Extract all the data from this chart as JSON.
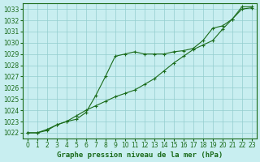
{
  "title": "Graphe pression niveau de la mer (hPa)",
  "background_color": "#c8eef0",
  "grid_color": "#93cece",
  "line_color": "#1a6b1a",
  "marker_color": "#1a6b1a",
  "xlim": [
    -0.5,
    23.5
  ],
  "ylim": [
    1021.5,
    1033.5
  ],
  "xticks": [
    0,
    1,
    2,
    3,
    4,
    5,
    6,
    7,
    8,
    9,
    10,
    11,
    12,
    13,
    14,
    15,
    16,
    17,
    18,
    19,
    20,
    21,
    22,
    23
  ],
  "yticks": [
    1022,
    1023,
    1024,
    1025,
    1026,
    1027,
    1028,
    1029,
    1030,
    1031,
    1032,
    1033
  ],
  "series1_x": [
    0,
    1,
    2,
    3,
    4,
    5,
    6,
    7,
    8,
    9,
    10,
    11,
    12,
    13,
    14,
    15,
    16,
    17,
    18,
    19,
    20,
    21,
    22,
    23
  ],
  "series1_y": [
    1022.0,
    1022.0,
    1022.2,
    1022.7,
    1023.0,
    1023.2,
    1023.8,
    1025.3,
    1027.0,
    1028.8,
    1029.0,
    1029.2,
    1029.0,
    1029.0,
    1029.0,
    1029.2,
    1029.3,
    1029.5,
    1030.2,
    1031.3,
    1031.5,
    1032.1,
    1033.2,
    1033.2
  ],
  "series2_x": [
    0,
    1,
    2,
    3,
    4,
    5,
    6,
    7,
    8,
    9,
    10,
    11,
    12,
    13,
    14,
    15,
    16,
    17,
    18,
    19,
    20,
    21,
    22,
    23
  ],
  "series2_y": [
    1022.0,
    1022.0,
    1022.3,
    1022.7,
    1023.0,
    1023.5,
    1024.0,
    1024.4,
    1024.8,
    1025.2,
    1025.5,
    1025.8,
    1026.3,
    1026.8,
    1027.5,
    1028.2,
    1028.8,
    1029.4,
    1029.8,
    1030.2,
    1031.2,
    1032.1,
    1033.0,
    1033.1
  ],
  "tick_fontsize": 5.5,
  "title_fontsize": 6.5
}
